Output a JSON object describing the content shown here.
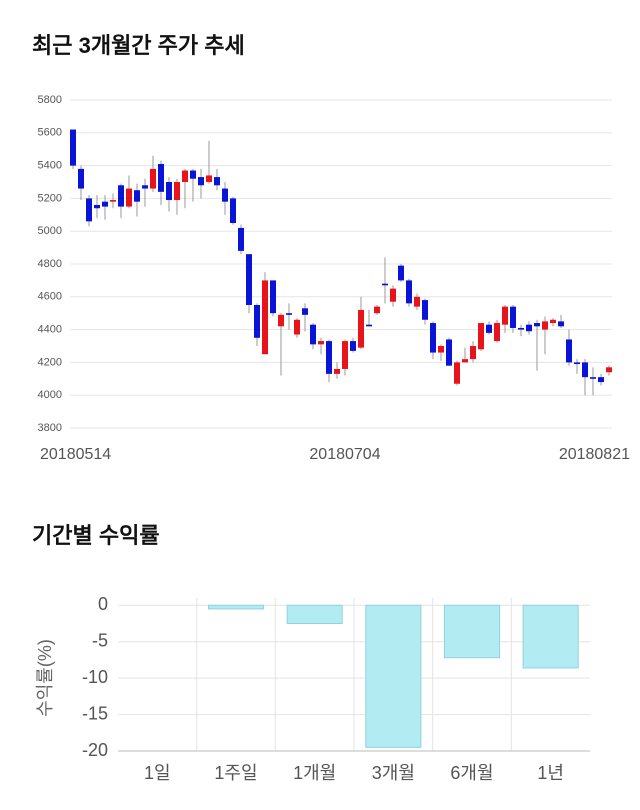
{
  "chart_data": [
    {
      "type": "candlestick",
      "title": "최근 3개월간 주가 추세",
      "categories": [
        "20180514",
        null,
        null,
        null,
        null,
        null,
        null,
        null,
        null,
        null,
        null,
        null,
        null,
        null,
        null,
        null,
        null,
        null,
        null,
        null,
        null,
        null,
        null,
        null,
        null,
        null,
        null,
        null,
        null,
        null,
        null,
        null,
        null,
        null,
        "20180704",
        null,
        null,
        null,
        null,
        null,
        null,
        null,
        null,
        null,
        null,
        null,
        null,
        null,
        null,
        null,
        null,
        null,
        null,
        null,
        null,
        null,
        null,
        null,
        null,
        null,
        null,
        null,
        null,
        null,
        null,
        null,
        null,
        "20180821"
      ],
      "open": [
        5620,
        5380,
        5200,
        5160,
        5180,
        5180,
        5280,
        5150,
        5250,
        5280,
        5260,
        5410,
        5300,
        5190,
        5300,
        5370,
        5330,
        5300,
        5330,
        5260,
        5200,
        5020,
        4860,
        4550,
        4250,
        4700,
        4420,
        4500,
        4370,
        4530,
        4430,
        4310,
        4330,
        4130,
        4160,
        4330,
        4290,
        4430,
        4500,
        4680,
        4570,
        4790,
        4700,
        4540,
        4580,
        4440,
        4260,
        4340,
        4070,
        4200,
        4220,
        4280,
        4430,
        4330,
        4430,
        4540,
        4410,
        4430,
        4440,
        4400,
        4440,
        4450,
        4340,
        4200,
        4200,
        4110,
        4110,
        4140
      ],
      "high": [
        5620,
        5400,
        5220,
        5220,
        5220,
        5230,
        5290,
        5340,
        5290,
        5320,
        5460,
        5430,
        5330,
        5320,
        5380,
        5380,
        5380,
        5550,
        5380,
        5300,
        5210,
        5040,
        4860,
        4560,
        4750,
        4700,
        4500,
        4560,
        4470,
        4560,
        4440,
        4350,
        4340,
        4200,
        4340,
        4350,
        4600,
        4520,
        4550,
        4840,
        4670,
        4800,
        4710,
        4620,
        4590,
        4450,
        4310,
        4350,
        4210,
        4290,
        4330,
        4440,
        4450,
        4460,
        4550,
        4550,
        4430,
        4450,
        4460,
        4480,
        4470,
        4490,
        4400,
        4220,
        4220,
        4170,
        4130,
        4180
      ],
      "low": [
        5380,
        5190,
        5030,
        5080,
        5070,
        5140,
        5080,
        5140,
        5090,
        5150,
        5240,
        5160,
        5120,
        5100,
        5140,
        5180,
        5200,
        5290,
        5250,
        5100,
        5040,
        4860,
        4500,
        4300,
        4250,
        4480,
        4120,
        4400,
        4350,
        4390,
        4280,
        4250,
        4080,
        4100,
        4120,
        4260,
        4280,
        4420,
        4490,
        4560,
        4540,
        4690,
        4540,
        4520,
        4430,
        4220,
        4210,
        4180,
        4060,
        4200,
        4200,
        4270,
        4370,
        4320,
        4380,
        4380,
        4360,
        4370,
        4150,
        4250,
        4420,
        4410,
        4180,
        4130,
        4000,
        4000,
        4060,
        4120
      ],
      "close": [
        5400,
        5260,
        5060,
        5140,
        5150,
        5190,
        5150,
        5260,
        5180,
        5260,
        5380,
        5240,
        5190,
        5300,
        5370,
        5320,
        5280,
        5340,
        5280,
        5180,
        5050,
        4880,
        4550,
        4350,
        4700,
        4500,
        4490,
        4490,
        4460,
        4490,
        4310,
        4330,
        4130,
        4160,
        4330,
        4270,
        4520,
        4420,
        4540,
        4670,
        4650,
        4700,
        4560,
        4600,
        4460,
        4260,
        4300,
        4180,
        4200,
        4220,
        4300,
        4440,
        4380,
        4440,
        4540,
        4410,
        4400,
        4390,
        4420,
        4450,
        4460,
        4420,
        4200,
        4190,
        4110,
        4100,
        4080,
        4170
      ],
      "up_color": "#e8141b",
      "down_color": "#0a14d6",
      "ylim": [
        3800,
        5800
      ],
      "yticks": [
        3800,
        4000,
        4200,
        4400,
        4600,
        4800,
        5000,
        5200,
        5400,
        5600,
        5800
      ],
      "grid": true
    },
    {
      "type": "bar",
      "title": "기간별 수익률",
      "y_label": "수익률(%)",
      "categories": [
        "1일",
        "1주일",
        "1개월",
        "3개월",
        "6개월",
        "1년"
      ],
      "values": [
        0,
        -0.5,
        -2.5,
        -19.5,
        -7.2,
        -8.6
      ],
      "color": "#b2ebf2",
      "edge_color": "#8fd3de",
      "ylim": [
        -20,
        1
      ],
      "yticks": [
        0,
        -5,
        -10,
        -15,
        -20
      ],
      "grid": true
    }
  ]
}
